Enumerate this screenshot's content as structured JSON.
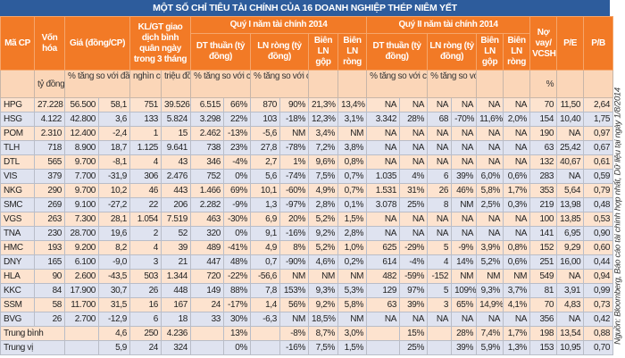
{
  "title": "MỘT SỐ CHỈ TIÊU TÀI CHÍNH CỦA 16 DOANH NGHIỆP THÉP NIÊM YẾT",
  "source": "Nguồn: Bloomberg, Báo cáo tài chính hợp nhất, Dữ liệu tại ngày 1/8/2014",
  "colors": {
    "title_bar": "#2d5c9c",
    "header": "#f27a26",
    "row_orange": "#fde3cf",
    "row_blue": "#dfe3f0"
  },
  "header": {
    "ma_cp": "Mã CP",
    "von_hoa": "Vốn hóa",
    "gia": "Giá (đồng/CP)",
    "kl_gt": "KL/GT giao dịch bình quân ngày trong 3 tháng",
    "q1": "Quý I năm tài chính 2014",
    "q2": "Quý II năm tài chính 2014",
    "no_vay": "Nợ vay/ VCSH",
    "pe": "P/E",
    "pb": "P/B",
    "q1_dt": "DT thuần (tỷ đồng)",
    "q1_ln": "LN ròng (tỷ đồng)",
    "q1_bien_gop": "Biên LN gộp",
    "q1_bien_rong": "Biên LN ròng",
    "q2_dt": "DT thuần (tỷ đồng)",
    "q2_ln": "LN ròng (tỷ đồng)",
    "q2_bien_gop": "Biên LN gộp",
    "q2_bien_rong": "Biên LN ròng"
  },
  "units": {
    "von_hoa": "tỷ đồng",
    "gia_pct": "% tăng so với đầu năm",
    "kl": "nghìn cổ phiếu",
    "gt": "triệu đồng",
    "q1_dt_pct": "% tăng so với cùng kỳ",
    "q1_ln_pct": "% tăng so với cùng kỳ",
    "q2_dt_pct": "% tăng so với cùng kỳ",
    "q2_ln_pct": "% tăng so với cùng kỳ",
    "no_vay": "%"
  },
  "rows": [
    [
      "HPG",
      "27.228",
      "56.500",
      "58,1",
      "751",
      "39.526",
      "6.515",
      "66%",
      "870",
      "90%",
      "21,3%",
      "13,4%",
      "NA",
      "NA",
      "NA",
      "NA",
      "NA",
      "NA",
      "70",
      "11,50",
      "2,64"
    ],
    [
      "HSG",
      "4.122",
      "42.800",
      "3,6",
      "133",
      "5.824",
      "3.298",
      "22%",
      "103",
      "-18%",
      "12,3%",
      "3,1%",
      "3.342",
      "28%",
      "68",
      "-70%",
      "11,6%",
      "2,0%",
      "154",
      "10,40",
      "1,75"
    ],
    [
      "POM",
      "2.310",
      "12.400",
      "-2,4",
      "1",
      "15",
      "2.462",
      "-13%",
      "-5,6",
      "NM",
      "3,4%",
      "NM",
      "NA",
      "NA",
      "NA",
      "NA",
      "NA",
      "NA",
      "190",
      "NA",
      "0,97"
    ],
    [
      "TLH",
      "718",
      "8.900",
      "18,7",
      "1.125",
      "9.641",
      "738",
      "23%",
      "27,8",
      "-78%",
      "7,2%",
      "3,8%",
      "NA",
      "NA",
      "NA",
      "NA",
      "NA",
      "NA",
      "63",
      "25,42",
      "0,67"
    ],
    [
      "DTL",
      "565",
      "9.700",
      "-8,1",
      "4",
      "43",
      "346",
      "-4%",
      "2,7",
      "1%",
      "9,6%",
      "0,8%",
      "NA",
      "NA",
      "NA",
      "NA",
      "NA",
      "NA",
      "132",
      "40,67",
      "0,61"
    ],
    [
      "VIS",
      "379",
      "7.700",
      "-31,9",
      "306",
      "2.476",
      "752",
      "0%",
      "5,6",
      "-74%",
      "7,5%",
      "0,7%",
      "1.035",
      "4%",
      "6",
      "39%",
      "6,0%",
      "0,6%",
      "283",
      "NA",
      "0,59"
    ],
    [
      "NKG",
      "290",
      "9.700",
      "10,2",
      "46",
      "443",
      "1.466",
      "69%",
      "10,1",
      "-60%",
      "4,9%",
      "0,7%",
      "1.531",
      "31%",
      "26",
      "46%",
      "5,8%",
      "1,7%",
      "353",
      "5,64",
      "0,79"
    ],
    [
      "SMC",
      "269",
      "9.100",
      "-27,2",
      "22",
      "206",
      "2.282",
      "-9%",
      "1,3",
      "-97%",
      "2,8%",
      "0,1%",
      "3.078",
      "25%",
      "8",
      "NM",
      "2,5%",
      "0,3%",
      "219",
      "13,98",
      "0,48"
    ],
    [
      "VGS",
      "263",
      "7.300",
      "28,1",
      "1.054",
      "7.519",
      "463",
      "-30%",
      "6,9",
      "20%",
      "5,2%",
      "1,5%",
      "NA",
      "NA",
      "NA",
      "NA",
      "NA",
      "NA",
      "100",
      "13,85",
      "0,53"
    ],
    [
      "TNA",
      "230",
      "28.700",
      "19,6",
      "2",
      "52",
      "320",
      "0%",
      "9,1",
      "-16%",
      "9,2%",
      "2,8%",
      "NA",
      "NA",
      "NA",
      "NA",
      "NA",
      "NA",
      "141",
      "6,95",
      "0,90"
    ],
    [
      "HMC",
      "193",
      "9.200",
      "8,2",
      "4",
      "39",
      "489",
      "-41%",
      "4,9",
      "8%",
      "5,2%",
      "1,0%",
      "625",
      "-29%",
      "5",
      "-9%",
      "3,9%",
      "0,8%",
      "152",
      "9,29",
      "0,60"
    ],
    [
      "DNY",
      "165",
      "6.100",
      "-9,0",
      "3",
      "21",
      "447",
      "48%",
      "0,7",
      "-90%",
      "4,6%",
      "0,2%",
      "614",
      "-4%",
      "4",
      "14%",
      "5,2%",
      "0,6%",
      "251",
      "16,00",
      "0,44"
    ],
    [
      "HLA",
      "90",
      "2.600",
      "-43,5",
      "503",
      "1.344",
      "720",
      "-22%",
      "-56,6",
      "NM",
      "NM",
      "NM",
      "482",
      "-59%",
      "-152",
      "NM",
      "NM",
      "NM",
      "549",
      "NA",
      "0,94"
    ],
    [
      "KKC",
      "84",
      "17.900",
      "30,7",
      "26",
      "448",
      "149",
      "88%",
      "7,8",
      "153%",
      "9,3%",
      "5,3%",
      "129",
      "97%",
      "5",
      "109%",
      "9,3%",
      "3,7%",
      "81",
      "3,91",
      "0,99"
    ],
    [
      "SSM",
      "58",
      "11.700",
      "31,5",
      "16",
      "167",
      "24",
      "-17%",
      "1,4",
      "56%",
      "9,2%",
      "5,8%",
      "63",
      "39%",
      "3",
      "65%",
      "14,9%",
      "4,1%",
      "70",
      "4,83",
      "0,73"
    ],
    [
      "BVG",
      "26",
      "2.700",
      "-12,9",
      "6",
      "18",
      "33",
      "30%",
      "-6,3",
      "NM",
      "18,5%",
      "NM",
      "NA",
      "NA",
      "NA",
      "NA",
      "NA",
      "NA",
      "356",
      "NA",
      "0,42"
    ]
  ],
  "summary": [
    [
      "Trung bình",
      "",
      "4,6",
      "250",
      "4.236",
      "",
      "13%",
      "",
      "-8%",
      "8,7%",
      "3,0%",
      "",
      "15%",
      "",
      "28%",
      "7,4%",
      "1,7%",
      "198",
      "13,54",
      "0,88"
    ],
    [
      "Trung vị",
      "",
      "5,9",
      "24",
      "324",
      "",
      "0%",
      "",
      "-16%",
      "7,5%",
      "1,5%",
      "",
      "25%",
      "",
      "39%",
      "5,9%",
      "1,3%",
      "153",
      "10,95",
      "0,70"
    ]
  ]
}
